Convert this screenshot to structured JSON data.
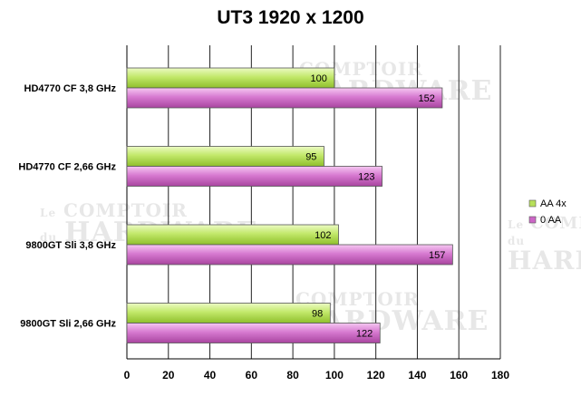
{
  "chart_data": {
    "type": "bar",
    "orientation": "horizontal",
    "title": "UT3 1920 x 1200",
    "xlabel": "",
    "ylabel": "",
    "categories": [
      "HD4770 CF 3,8 GHz",
      "HD4770 CF 2,66 GHz",
      "9800GT Sli 3,8 GHz",
      "9800GT Sli 2,66 GHz"
    ],
    "series": [
      {
        "name": "AA 4x",
        "values": [
          100,
          95,
          102,
          98
        ],
        "color": "#b7e05a"
      },
      {
        "name": "0 AA",
        "values": [
          152,
          123,
          157,
          122
        ],
        "color": "#cc66c6"
      }
    ],
    "xlim": [
      0,
      180
    ],
    "xticks": [
      0,
      20,
      40,
      60,
      80,
      100,
      120,
      140,
      160,
      180
    ],
    "grid": "vertical",
    "legend": "right",
    "data_labels": true
  },
  "watermark": {
    "line1": "COMPTOIR",
    "line2": "HARDWARE",
    "prefix1": "Le",
    "prefix2": "du"
  }
}
